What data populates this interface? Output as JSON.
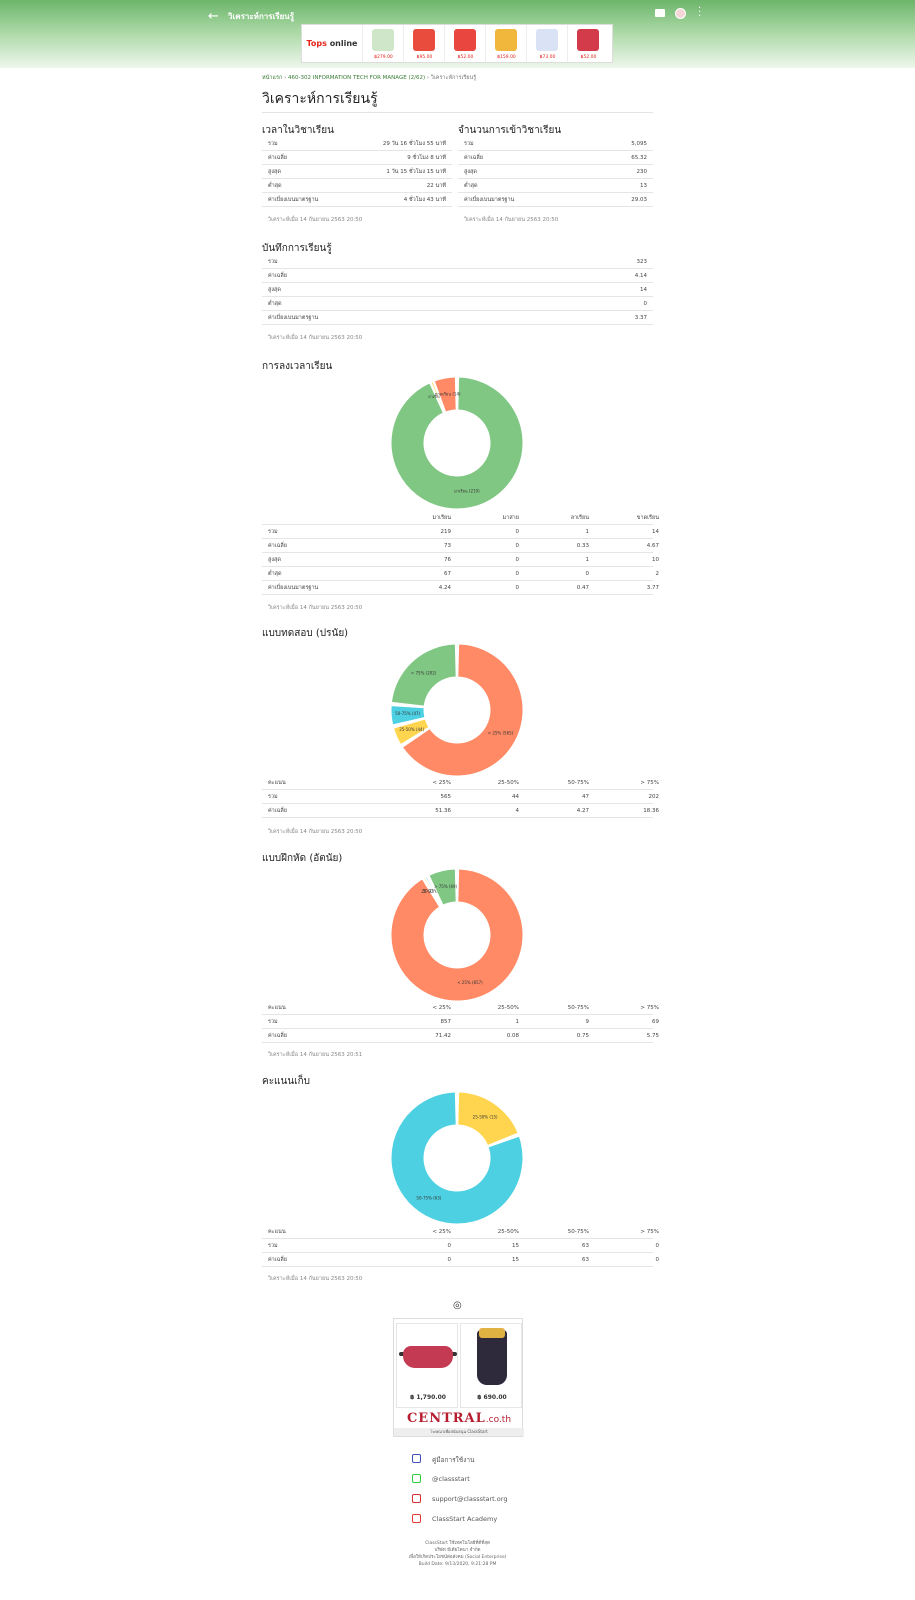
{
  "appbar": {
    "title": "วิเคราะห์การเรียนรู้",
    "back_icon": "arrow-left-icon",
    "chat_icon": "chat-icon",
    "more_icon": "more-vert-icon",
    "ad_logo_word1": "Tops",
    "ad_logo_word2": "online",
    "ad_prices": [
      "฿279.00",
      "฿95.00",
      "฿52.00",
      "฿159.00",
      "฿73.00",
      "฿52.00"
    ],
    "ad_colors": [
      "#cfe7c8",
      "#e94b3c",
      "#e8463f",
      "#f1b63c",
      "#d9e3f5",
      "#d33a4a"
    ]
  },
  "breadcrumb": {
    "home": "หน้าแรก",
    "course": "460-302 INFORMATION TECH FOR MANAGE (2/62)",
    "current": "วิเคราะห์การเรียนรู้"
  },
  "page_title": "วิเคราะห์การเรียนรู้",
  "study_time": {
    "title": "เวลาในวิชาเรียน",
    "rows": [
      {
        "label": "รวม",
        "value": "29 วัน 16 ชั่วโมง 55 นาที"
      },
      {
        "label": "ค่าเฉลี่ย",
        "value": "9 ชั่วโมง 8 นาที"
      },
      {
        "label": "สูงสุด",
        "value": "1 วัน 15 ชั่วโมง 15 นาที"
      },
      {
        "label": "ต่ำสุด",
        "value": "22 นาที"
      },
      {
        "label": "ค่าเบี่ยงเบนมาตรฐาน",
        "value": "4 ชั่วโมง 43 นาที"
      }
    ],
    "timestamp": "วิเคราะห์เมื่อ 14 กันยายน 2563 20:50"
  },
  "visits": {
    "title": "จำนวนการเข้าวิชาเรียน",
    "rows": [
      {
        "label": "รวม",
        "value": "5,095"
      },
      {
        "label": "ค่าเฉลี่ย",
        "value": "65.32"
      },
      {
        "label": "สูงสุด",
        "value": "230"
      },
      {
        "label": "ต่ำสุด",
        "value": "13"
      },
      {
        "label": "ค่าเบี่ยงเบนมาตรฐาน",
        "value": "29.03"
      }
    ],
    "timestamp": "วิเคราะห์เมื่อ 14 กันยายน 2563 20:50"
  },
  "journal": {
    "title": "บันทึกการเรียนรู้",
    "rows": [
      {
        "label": "รวม",
        "value": "323"
      },
      {
        "label": "ค่าเฉลี่ย",
        "value": "4.14"
      },
      {
        "label": "สูงสุด",
        "value": "14"
      },
      {
        "label": "ต่ำสุด",
        "value": "0"
      },
      {
        "label": "ค่าเบี่ยงเบนมาตรฐาน",
        "value": "3.37"
      }
    ],
    "timestamp": "วิเคราะห์เมื่อ 14 กันยายน 2563 20:50"
  },
  "attendance": {
    "title": "การลงเวลาเรียน",
    "headers": [
      "",
      "มาเรียน",
      "มาสาย",
      "ลาเรียน",
      "ขาดเรียน"
    ],
    "rows": [
      [
        "รวม",
        "219",
        "0",
        "1",
        "14"
      ],
      [
        "ค่าเฉลี่ย",
        "73",
        "0",
        "0.33",
        "4.67"
      ],
      [
        "สูงสุด",
        "76",
        "0",
        "1",
        "10"
      ],
      [
        "ต่ำสุด",
        "67",
        "0",
        "0",
        "2"
      ],
      [
        "ค่าเบี่ยงเบนมาตรฐาน",
        "4.24",
        "0",
        "0.47",
        "3.77"
      ]
    ],
    "timestamp": "วิเคราะห์เมื่อ 14 กันยายน 2563 20:50"
  },
  "quiz": {
    "title": "แบบทดสอบ (ปรนัย)",
    "headers": [
      "คะแนน",
      "< 25%",
      "25-50%",
      "50-75%",
      "> 75%"
    ],
    "rows": [
      [
        "รวม",
        "565",
        "44",
        "47",
        "202"
      ],
      [
        "ค่าเฉลี่ย",
        "51.36",
        "4",
        "4.27",
        "18.36"
      ]
    ],
    "timestamp": "วิเคราะห์เมื่อ 14 กันยายน 2563 20:50"
  },
  "exercise": {
    "title": "แบบฝึกหัด (อัตนัย)",
    "headers": [
      "คะแนน",
      "< 25%",
      "25-50%",
      "50-75%",
      "> 75%"
    ],
    "rows": [
      [
        "รวม",
        "857",
        "1",
        "9",
        "69"
      ],
      [
        "ค่าเฉลี่ย",
        "71.42",
        "0.08",
        "0.75",
        "5.75"
      ]
    ],
    "timestamp": "วิเคราะห์เมื่อ 14 กันยายน 2563 20:51"
  },
  "score": {
    "title": "คะแนนเก็บ",
    "headers": [
      "คะแนน",
      "< 25%",
      "25-50%",
      "50-75%",
      "> 75%"
    ],
    "rows": [
      [
        "รวม",
        "0",
        "15",
        "63",
        "0"
      ],
      [
        "ค่าเฉลี่ย",
        "0",
        "15",
        "63",
        "0"
      ]
    ],
    "timestamp": "วิเคราะห์เมื่อ 14 กันยายน 2563 20:50"
  },
  "chart_data": [
    {
      "type": "pie",
      "title": "การลงเวลาเรียน",
      "categories": [
        "มาเรียน",
        "มาสาย",
        "ลาเรียน",
        "ขาดเรียน"
      ],
      "values": [
        219,
        0,
        1,
        14
      ],
      "colors": [
        "#81c784",
        "#4dd0e1",
        "#ffd54f",
        "#ff8a65"
      ],
      "labels": [
        "มาเรียน (219)",
        "",
        "ลาเรียน (1)",
        "ขาดเรียน (14)"
      ]
    },
    {
      "type": "pie",
      "title": "แบบทดสอบ (ปรนัย)",
      "categories": [
        "< 25%",
        "25-50%",
        "50-75%",
        "> 75%"
      ],
      "values": [
        565,
        44,
        47,
        202
      ],
      "colors": [
        "#ff8a65",
        "#ffd54f",
        "#4dd0e1",
        "#81c784"
      ],
      "labels": [
        "< 25% (565)",
        "25-50% (44)",
        "50-75% (47)",
        "> 75% (202)"
      ]
    },
    {
      "type": "pie",
      "title": "แบบฝึกหัด (อัตนัย)",
      "categories": [
        "< 25%",
        "25-50%",
        "50-75%",
        "> 75%"
      ],
      "values": [
        857,
        1,
        9,
        69
      ],
      "colors": [
        "#ff8a65",
        "#ffd54f",
        "#4dd0e1",
        "#81c784"
      ],
      "labels": [
        "< 25% (857)",
        "25-50% (1)",
        "50-75% (9)",
        "> 75% (69)"
      ]
    },
    {
      "type": "pie",
      "title": "คะแนนเก็บ",
      "categories": [
        "< 25%",
        "25-50%",
        "50-75%",
        "> 75%"
      ],
      "values": [
        0,
        15,
        63,
        0
      ],
      "colors": [
        "#ff8a65",
        "#ffd54f",
        "#4dd0e1",
        "#81c784"
      ],
      "labels": [
        "",
        "25-50% (15)",
        "50-75% (63)",
        ""
      ]
    }
  ],
  "bottom_ad": {
    "price1": "฿ 1,790.00",
    "price2": "฿ 690.00",
    "brand": "CENTRAL",
    "brand_suffix": ".co.th",
    "sponsor": "โฆษณาเพื่อสนับสนุน ClassStart"
  },
  "links": [
    {
      "icon": "manual-icon",
      "label": "คู่มือการใช้งาน",
      "color": "#3f51b5"
    },
    {
      "icon": "line-icon",
      "label": "@classstart",
      "color": "#2ecc40"
    },
    {
      "icon": "mail-icon",
      "label": "support@classstart.org",
      "color": "#d32f2f"
    },
    {
      "icon": "youtube-icon",
      "label": "ClassStart Academy",
      "color": "#e53935"
    }
  ],
  "footer": {
    "line1": "ClassStart ใช้เทคโนโลยีที่ดีที่สุด",
    "line2": "บริษัท มีเดียโคนา จำกัด",
    "line3": "เพื่อให้เกิดประโยชน์ต่อสังคม (Social Enterprise)",
    "build": "Build Date: 9/13/2020, 9:21:28 PM"
  }
}
